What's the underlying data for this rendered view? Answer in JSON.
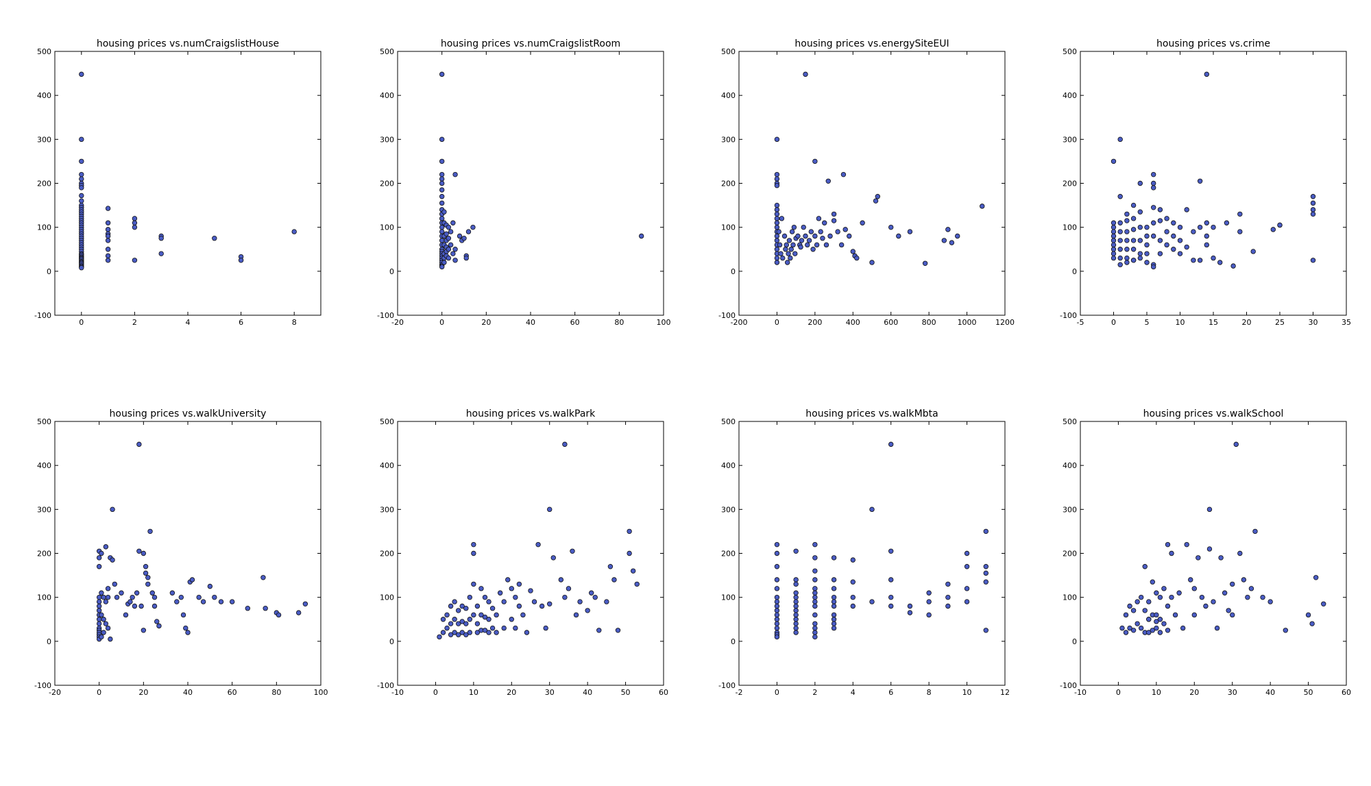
{
  "marker_color": "#4a5cc4",
  "chart_data": [
    {
      "type": "scatter",
      "title": "housing prices vs.numCraigslistHouse",
      "xlim": [
        -1,
        9
      ],
      "ylim": [
        -100,
        500
      ],
      "xticks": [
        0,
        2,
        4,
        6,
        8
      ],
      "yticks": [
        -100,
        0,
        100,
        200,
        300,
        400,
        500
      ],
      "x": [
        0,
        0,
        0,
        0,
        0,
        0,
        0,
        0,
        0,
        0,
        0,
        0,
        0,
        0,
        0,
        0,
        0,
        0,
        0,
        0,
        0,
        0,
        0,
        0,
        0,
        0,
        0,
        0,
        0,
        0,
        0,
        0,
        0,
        0,
        0,
        0,
        0,
        0,
        0,
        0,
        0,
        0,
        0,
        0,
        0,
        0,
        1,
        1,
        1,
        1,
        1,
        1,
        1,
        1,
        1,
        2,
        2,
        2,
        2,
        3,
        3,
        3,
        5,
        6,
        6,
        8
      ],
      "y": [
        448,
        300,
        250,
        220,
        210,
        200,
        195,
        190,
        172,
        160,
        150,
        145,
        140,
        135,
        130,
        125,
        120,
        115,
        110,
        105,
        100,
        95,
        90,
        85,
        80,
        75,
        70,
        65,
        60,
        55,
        50,
        45,
        40,
        38,
        35,
        32,
        30,
        28,
        25,
        22,
        20,
        18,
        15,
        12,
        10,
        8,
        143,
        110,
        95,
        85,
        80,
        70,
        50,
        35,
        25,
        120,
        110,
        100,
        25,
        80,
        75,
        40,
        75,
        33,
        25,
        90
      ]
    },
    {
      "type": "scatter",
      "title": "housing prices vs.numCraigslistRoom",
      "xlim": [
        -20,
        100
      ],
      "ylim": [
        -100,
        500
      ],
      "xticks": [
        -20,
        0,
        20,
        40,
        60,
        80,
        100
      ],
      "yticks": [
        -100,
        0,
        100,
        200,
        300,
        400,
        500
      ],
      "x": [
        0,
        0,
        0,
        0,
        0,
        0,
        0,
        0,
        0,
        0,
        0,
        0,
        0,
        0,
        0,
        0,
        0,
        0,
        0,
        0,
        0,
        0,
        0,
        0,
        0,
        0,
        0,
        0,
        1,
        1,
        1,
        1,
        1,
        1,
        1,
        2,
        2,
        2,
        2,
        2,
        2,
        3,
        3,
        3,
        3,
        4,
        4,
        5,
        5,
        6,
        6,
        6,
        8,
        9,
        10,
        11,
        11,
        12,
        14,
        90
      ],
      "y": [
        448,
        300,
        250,
        220,
        210,
        200,
        185,
        170,
        155,
        140,
        130,
        120,
        110,
        100,
        90,
        80,
        70,
        60,
        50,
        45,
        40,
        35,
        30,
        25,
        20,
        15,
        12,
        10,
        135,
        110,
        80,
        60,
        40,
        30,
        20,
        105,
        85,
        70,
        55,
        45,
        35,
        100,
        75,
        50,
        30,
        90,
        60,
        110,
        40,
        220,
        50,
        25,
        80,
        70,
        75,
        35,
        30,
        90,
        100,
        80
      ]
    },
    {
      "type": "scatter",
      "title": "housing prices vs.energySiteEUI",
      "xlim": [
        -200,
        1200
      ],
      "ylim": [
        -100,
        500
      ],
      "xticks": [
        -200,
        0,
        200,
        400,
        600,
        800,
        1000,
        1200
      ],
      "yticks": [
        -100,
        0,
        100,
        200,
        300,
        400,
        500
      ],
      "x": [
        0,
        0,
        0,
        0,
        0,
        0,
        0,
        0,
        0,
        0,
        0,
        0,
        0,
        0,
        0,
        0,
        0,
        0,
        0,
        10,
        15,
        20,
        25,
        30,
        40,
        45,
        50,
        55,
        60,
        65,
        70,
        75,
        80,
        85,
        90,
        95,
        100,
        110,
        120,
        125,
        130,
        140,
        150,
        160,
        170,
        180,
        190,
        200,
        210,
        220,
        230,
        240,
        250,
        260,
        270,
        280,
        300,
        320,
        340,
        350,
        360,
        380,
        400,
        410,
        420,
        450,
        500,
        520,
        530,
        600,
        640,
        700,
        780,
        880,
        900,
        920,
        950,
        1080,
        150,
        200,
        300
      ],
      "y": [
        300,
        220,
        210,
        200,
        195,
        150,
        140,
        130,
        120,
        110,
        100,
        90,
        80,
        70,
        60,
        50,
        40,
        30,
        20,
        90,
        60,
        40,
        120,
        30,
        80,
        50,
        60,
        20,
        40,
        70,
        30,
        50,
        90,
        60,
        100,
        40,
        75,
        80,
        60,
        55,
        70,
        100,
        80,
        60,
        70,
        90,
        50,
        80,
        60,
        120,
        90,
        75,
        110,
        60,
        205,
        80,
        115,
        90,
        60,
        220,
        95,
        80,
        45,
        35,
        30,
        110,
        20,
        160,
        170,
        100,
        80,
        90,
        18,
        70,
        95,
        65,
        80,
        148,
        448,
        250,
        130
      ]
    },
    {
      "type": "scatter",
      "title": "housing prices vs.crime",
      "xlim": [
        -5,
        35
      ],
      "ylim": [
        -100,
        500
      ],
      "xticks": [
        -5,
        0,
        5,
        10,
        15,
        20,
        25,
        30,
        35
      ],
      "yticks": [
        -100,
        0,
        100,
        200,
        300,
        400,
        500
      ],
      "x": [
        0,
        0,
        0,
        0,
        0,
        0,
        0,
        0,
        0,
        0,
        1,
        1,
        1,
        1,
        1,
        1,
        1,
        2,
        2,
        2,
        2,
        2,
        2,
        3,
        3,
        3,
        3,
        3,
        3,
        4,
        4,
        4,
        4,
        4,
        5,
        5,
        5,
        5,
        5,
        6,
        6,
        6,
        6,
        6,
        6,
        7,
        7,
        7,
        7,
        8,
        8,
        8,
        9,
        9,
        9,
        10,
        10,
        10,
        11,
        11,
        12,
        12,
        13,
        13,
        14,
        14,
        14,
        15,
        15,
        16,
        17,
        18,
        19,
        19,
        21,
        24,
        25,
        25,
        30,
        30,
        30,
        30,
        30,
        1,
        2,
        3,
        4,
        6,
        6,
        13,
        14
      ],
      "y": [
        250,
        110,
        100,
        90,
        80,
        70,
        60,
        50,
        40,
        30,
        300,
        170,
        110,
        90,
        70,
        50,
        30,
        130,
        115,
        90,
        70,
        50,
        30,
        150,
        120,
        95,
        70,
        50,
        25,
        200,
        135,
        100,
        70,
        40,
        100,
        80,
        60,
        40,
        20,
        220,
        200,
        190,
        145,
        110,
        80,
        140,
        115,
        70,
        40,
        120,
        90,
        60,
        110,
        80,
        50,
        100,
        70,
        40,
        140,
        55,
        25,
        90,
        25,
        100,
        110,
        80,
        60,
        100,
        30,
        20,
        110,
        12,
        130,
        90,
        45,
        95,
        105,
        105,
        170,
        155,
        140,
        130,
        25,
        15,
        20,
        25,
        30,
        15,
        10,
        205,
        448
      ]
    },
    {
      "type": "scatter",
      "title": "housing prices vs.walkUniversity",
      "xlim": [
        -20,
        100
      ],
      "ylim": [
        -100,
        500
      ],
      "xticks": [
        -20,
        0,
        20,
        40,
        60,
        80,
        100
      ],
      "yticks": [
        -100,
        0,
        100,
        200,
        300,
        400,
        500
      ],
      "x": [
        0,
        0,
        0,
        0,
        0,
        0,
        0,
        0,
        0,
        0,
        0,
        0,
        0,
        0,
        0,
        0,
        1,
        1,
        1,
        2,
        2,
        2,
        3,
        3,
        3,
        4,
        4,
        5,
        6,
        7,
        8,
        10,
        12,
        13,
        14,
        15,
        16,
        17,
        18,
        18,
        19,
        20,
        20,
        21,
        21,
        22,
        22,
        23,
        24,
        25,
        25,
        26,
        27,
        33,
        35,
        37,
        38,
        39,
        40,
        41,
        42,
        45,
        47,
        50,
        52,
        55,
        60,
        67,
        74,
        75,
        80,
        81,
        90,
        93,
        1,
        4,
        5,
        6
      ],
      "y": [
        205,
        190,
        170,
        100,
        90,
        80,
        70,
        60,
        50,
        40,
        30,
        25,
        20,
        15,
        10,
        5,
        200,
        110,
        60,
        100,
        50,
        20,
        215,
        90,
        40,
        120,
        30,
        190,
        185,
        130,
        100,
        110,
        60,
        85,
        90,
        100,
        80,
        110,
        205,
        448,
        80,
        200,
        25,
        170,
        155,
        145,
        130,
        250,
        110,
        100,
        80,
        45,
        35,
        110,
        90,
        100,
        60,
        30,
        20,
        135,
        140,
        100,
        90,
        125,
        100,
        90,
        90,
        75,
        145,
        75,
        65,
        60,
        65,
        85,
        10,
        100,
        5,
        300
      ]
    },
    {
      "type": "scatter",
      "title": "housing prices vs.walkPark",
      "xlim": [
        -10,
        60
      ],
      "ylim": [
        -100,
        500
      ],
      "xticks": [
        -10,
        0,
        10,
        20,
        30,
        40,
        50,
        60
      ],
      "yticks": [
        -100,
        0,
        100,
        200,
        300,
        400,
        500
      ],
      "x": [
        1,
        2,
        2,
        3,
        3,
        4,
        4,
        4,
        5,
        5,
        5,
        6,
        6,
        6,
        7,
        7,
        7,
        8,
        8,
        8,
        9,
        9,
        9,
        10,
        10,
        10,
        10,
        11,
        11,
        11,
        12,
        12,
        12,
        13,
        13,
        13,
        14,
        14,
        14,
        15,
        15,
        16,
        16,
        17,
        18,
        18,
        19,
        20,
        20,
        21,
        21,
        22,
        22,
        23,
        24,
        25,
        26,
        27,
        28,
        29,
        30,
        31,
        33,
        34,
        35,
        36,
        37,
        38,
        40,
        41,
        42,
        43,
        45,
        46,
        47,
        48,
        51,
        51,
        52,
        53,
        30,
        34
      ],
      "y": [
        10,
        50,
        20,
        60,
        30,
        80,
        40,
        15,
        90,
        50,
        20,
        70,
        40,
        15,
        80,
        45,
        20,
        75,
        40,
        15,
        100,
        50,
        20,
        220,
        200,
        130,
        60,
        80,
        40,
        20,
        120,
        60,
        25,
        100,
        55,
        25,
        90,
        50,
        20,
        75,
        30,
        60,
        20,
        110,
        90,
        30,
        140,
        120,
        50,
        100,
        30,
        130,
        80,
        60,
        20,
        115,
        90,
        220,
        80,
        30,
        300,
        190,
        140,
        100,
        120,
        205,
        60,
        90,
        70,
        110,
        100,
        25,
        90,
        170,
        140,
        25,
        250,
        200,
        160,
        130,
        85,
        448
      ]
    },
    {
      "type": "scatter",
      "title": "housing prices vs.walkMbta",
      "xlim": [
        -2,
        12
      ],
      "ylim": [
        -100,
        500
      ],
      "xticks": [
        -2,
        0,
        2,
        4,
        6,
        8,
        10,
        12
      ],
      "yticks": [
        -100,
        0,
        100,
        200,
        300,
        400,
        500
      ],
      "x": [
        0,
        0,
        0,
        0,
        0,
        0,
        0,
        0,
        0,
        0,
        0,
        0,
        0,
        0,
        0,
        0,
        1,
        1,
        1,
        1,
        1,
        1,
        1,
        1,
        1,
        1,
        1,
        1,
        1,
        2,
        2,
        2,
        2,
        2,
        2,
        2,
        2,
        2,
        2,
        2,
        2,
        2,
        2,
        3,
        3,
        3,
        3,
        3,
        3,
        3,
        3,
        3,
        3,
        4,
        4,
        4,
        4,
        5,
        5,
        6,
        6,
        6,
        6,
        6,
        7,
        7,
        8,
        8,
        8,
        9,
        9,
        9,
        10,
        10,
        10,
        10,
        11,
        11,
        11,
        11,
        11
      ],
      "y": [
        220,
        200,
        170,
        140,
        120,
        100,
        90,
        80,
        70,
        60,
        50,
        40,
        30,
        20,
        15,
        10,
        205,
        140,
        130,
        110,
        100,
        90,
        80,
        70,
        60,
        50,
        40,
        30,
        20,
        220,
        190,
        160,
        140,
        120,
        110,
        100,
        90,
        80,
        60,
        40,
        30,
        20,
        10,
        190,
        140,
        120,
        100,
        90,
        80,
        60,
        50,
        40,
        30,
        185,
        135,
        100,
        80,
        90,
        300,
        448,
        205,
        140,
        100,
        80,
        80,
        65,
        110,
        90,
        60,
        130,
        100,
        80,
        200,
        170,
        120,
        90,
        250,
        170,
        155,
        135,
        25
      ]
    },
    {
      "type": "scatter",
      "title": "housing prices vs.walkSchool",
      "xlim": [
        -10,
        60
      ],
      "ylim": [
        -100,
        500
      ],
      "xticks": [
        -10,
        0,
        10,
        20,
        30,
        40,
        50,
        60
      ],
      "yticks": [
        -100,
        0,
        100,
        200,
        300,
        400,
        500
      ],
      "x": [
        1,
        2,
        2,
        3,
        3,
        4,
        4,
        5,
        5,
        6,
        6,
        7,
        7,
        7,
        8,
        8,
        8,
        9,
        9,
        9,
        10,
        10,
        10,
        11,
        11,
        11,
        12,
        12,
        13,
        13,
        14,
        14,
        15,
        16,
        17,
        18,
        19,
        20,
        20,
        21,
        22,
        23,
        24,
        25,
        26,
        27,
        28,
        29,
        30,
        30,
        31,
        32,
        33,
        34,
        35,
        36,
        38,
        40,
        44,
        50,
        51,
        52,
        54,
        8,
        10,
        13,
        24
      ],
      "y": [
        30,
        60,
        20,
        80,
        30,
        70,
        25,
        90,
        40,
        100,
        30,
        170,
        70,
        20,
        90,
        50,
        20,
        135,
        60,
        25,
        110,
        60,
        30,
        100,
        50,
        20,
        120,
        40,
        220,
        80,
        200,
        100,
        60,
        110,
        30,
        220,
        140,
        120,
        60,
        190,
        100,
        80,
        300,
        90,
        30,
        190,
        110,
        70,
        130,
        60,
        448,
        200,
        140,
        100,
        120,
        250,
        100,
        90,
        25,
        60,
        40,
        145,
        85,
        50,
        45,
        25,
        210
      ]
    }
  ]
}
